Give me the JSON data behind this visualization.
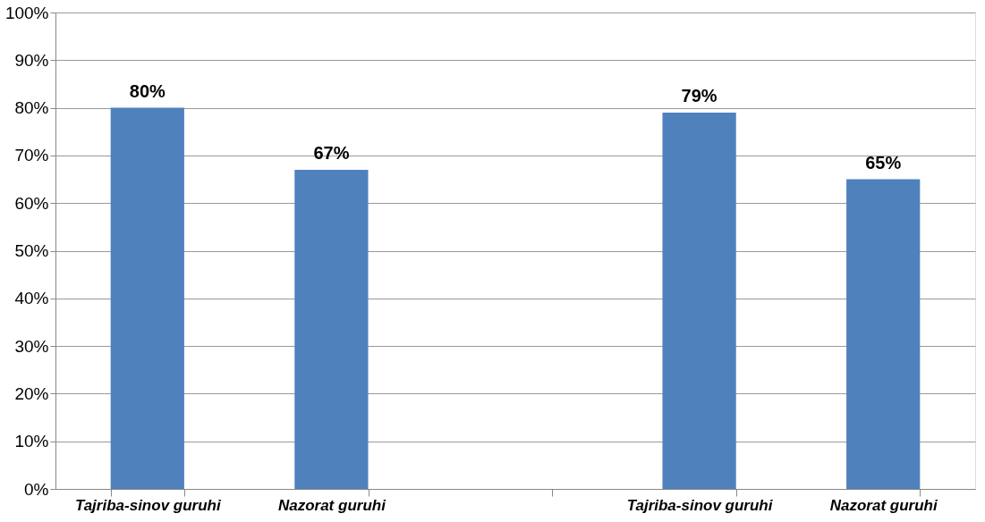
{
  "chart_data": {
    "type": "bar",
    "categories": [
      "Tajriba-sinov guruhi",
      "Nazorat guruhi",
      null,
      "Tajriba-sinov guruhi",
      "Nazorat guruhi"
    ],
    "values": [
      80,
      67,
      null,
      79,
      65
    ],
    "color": "#4f81bd",
    "value_labels": [
      "80%",
      "67%",
      null,
      "79%",
      "65%"
    ],
    "ylim": [
      0,
      100
    ],
    "yticks": [
      {
        "value": 0,
        "label": "0%"
      },
      {
        "value": 10,
        "label": "10%"
      },
      {
        "value": 20,
        "label": "20%"
      },
      {
        "value": 30,
        "label": "30%"
      },
      {
        "value": 40,
        "label": "40%"
      },
      {
        "value": 50,
        "label": "50%"
      },
      {
        "value": 60,
        "label": "60%"
      },
      {
        "value": 70,
        "label": "70%"
      },
      {
        "value": 80,
        "label": "80%"
      },
      {
        "value": 90,
        "label": "90%"
      },
      {
        "value": 100,
        "label": "100%"
      }
    ],
    "grid": "y"
  }
}
